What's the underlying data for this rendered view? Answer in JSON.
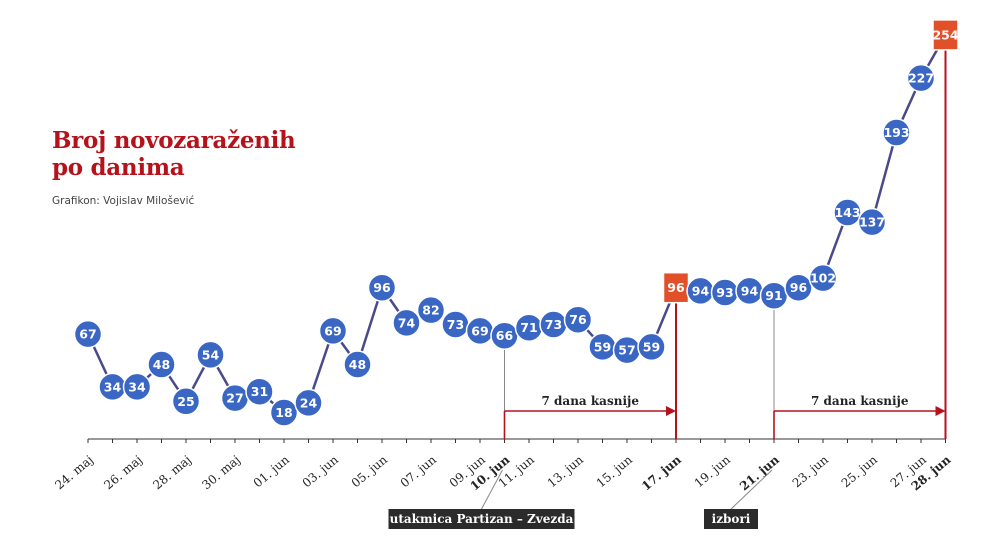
{
  "header": {
    "title_line1": "Broj novozaraženih",
    "title_line2": "po danima",
    "credit": "Grafikon: Vojislav Milošević"
  },
  "colors": {
    "title": "#b5121b",
    "point": "#3a66c4",
    "point_stroke": "#ffffff",
    "line": "#4a4a8a",
    "highlight": "#e2502a",
    "annotation": "#b5121b"
  },
  "chart_data": {
    "type": "line",
    "title": "Broj novozaraženih po danima",
    "x": [
      "24. maj",
      "25. maj",
      "26. maj",
      "27. maj",
      "28. maj",
      "29. maj",
      "30. maj",
      "31. maj",
      "01. jun",
      "02. jun",
      "03. jun",
      "04. jun",
      "05. jun",
      "06. jun",
      "07. jun",
      "08. jun",
      "09. jun",
      "10. jun",
      "11. jun",
      "12. jun",
      "13. jun",
      "14. jun",
      "15. jun",
      "16. jun",
      "17. jun",
      "18. jun",
      "19. jun",
      "20. jun",
      "21. jun",
      "22. jun",
      "23. jun",
      "24. jun",
      "25. jun",
      "26. jun",
      "27. jun",
      "28. jun"
    ],
    "values": [
      67,
      34,
      34,
      48,
      25,
      54,
      27,
      31,
      18,
      24,
      69,
      48,
      96,
      74,
      82,
      73,
      69,
      66,
      71,
      73,
      76,
      59,
      57,
      59,
      96,
      94,
      93,
      94,
      91,
      96,
      102,
      143,
      137,
      193,
      227,
      254
    ],
    "highlighted": [
      "17. jun",
      "28. jun"
    ],
    "tick_labels": [
      "24. maj",
      "26. maj",
      "28. maj",
      "30. maj",
      "01. jun",
      "03. jun",
      "05. jun",
      "07. jun",
      "09. jun",
      "10. jun",
      "11. jun",
      "13. jun",
      "15. jun",
      "17. jun",
      "19. jun",
      "21. jun",
      "23. jun",
      "25. jun",
      "27. jun",
      "28. jun"
    ],
    "bold_ticks": [
      "10. jun",
      "17. jun",
      "21. jun",
      "28. jun"
    ],
    "annotations": [
      {
        "from": "10. jun",
        "to": "17. jun",
        "text": "7 dana kasnije"
      },
      {
        "from": "21. jun",
        "to": "28. jun",
        "text": "7 dana kasnije"
      }
    ],
    "events": [
      {
        "date": "10. jun",
        "text": "utakmica Partizan – Zvezda"
      },
      {
        "date": "21. jun",
        "text": "izbori"
      }
    ]
  }
}
